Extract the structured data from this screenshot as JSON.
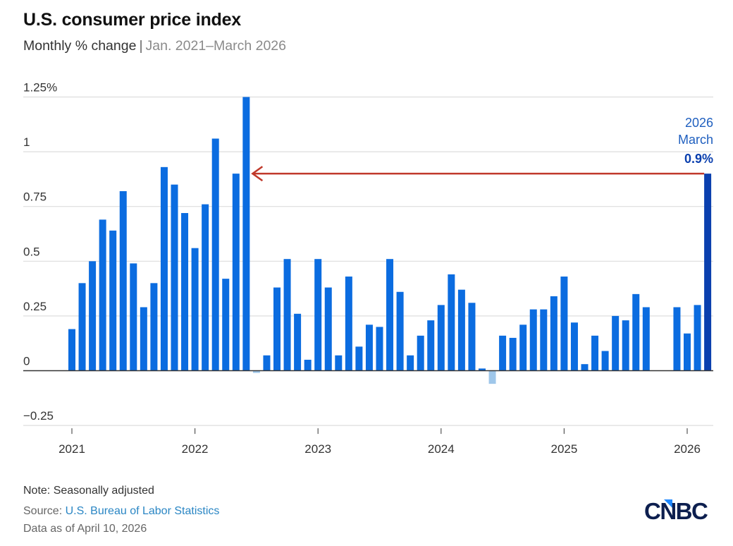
{
  "header": {
    "title": "U.S. consumer price index",
    "subtitle_main": "Monthly % change",
    "subtitle_sep": "|",
    "subtitle_range": "Jan. 2021–March 2026"
  },
  "footer": {
    "note": "Note: Seasonally adjusted",
    "source_label": "Source: ",
    "source_name": "U.S. Bureau of Labor Statistics",
    "data_as_of": "Data as of April 10, 2026",
    "logo_text": "CNBC"
  },
  "colors": {
    "bar": "#0b6ce0",
    "bar_highlight": "#0a3fae",
    "bar_negative": "#9fc7ea",
    "arrow": "#c0392b",
    "grid": "#dddddd",
    "callout": "#1f5fbf"
  },
  "chart_data": {
    "type": "bar",
    "title": "U.S. consumer price index",
    "subtitle": "Monthly % change | Jan. 2021–March 2026",
    "xlabel": "",
    "ylabel": "",
    "ylim": [
      -0.25,
      1.25
    ],
    "yticks": [
      -0.25,
      0,
      0.25,
      0.5,
      0.75,
      1,
      1.25
    ],
    "ytick_labels": [
      "−0.25",
      "0",
      "0.25",
      "0.5",
      "0.75",
      "1",
      "1.25%"
    ],
    "xtick_labels": [
      "2021",
      "2022",
      "2023",
      "2024",
      "2025",
      "2026"
    ],
    "grid": true,
    "categories": [
      "2021-01",
      "2021-02",
      "2021-03",
      "2021-04",
      "2021-05",
      "2021-06",
      "2021-07",
      "2021-08",
      "2021-09",
      "2021-10",
      "2021-11",
      "2021-12",
      "2022-01",
      "2022-02",
      "2022-03",
      "2022-04",
      "2022-05",
      "2022-06",
      "2022-07",
      "2022-08",
      "2022-09",
      "2022-10",
      "2022-11",
      "2022-12",
      "2023-01",
      "2023-02",
      "2023-03",
      "2023-04",
      "2023-05",
      "2023-06",
      "2023-07",
      "2023-08",
      "2023-09",
      "2023-10",
      "2023-11",
      "2023-12",
      "2024-01",
      "2024-02",
      "2024-03",
      "2024-04",
      "2024-05",
      "2024-06",
      "2024-07",
      "2024-08",
      "2024-09",
      "2024-10",
      "2024-11",
      "2024-12",
      "2025-01",
      "2025-02",
      "2025-03",
      "2025-04",
      "2025-05",
      "2025-06",
      "2025-07",
      "2025-08",
      "2025-09",
      "2025-10",
      "2025-11",
      "2025-12",
      "2026-01",
      "2026-02",
      "2026-03"
    ],
    "values": [
      0.19,
      0.4,
      0.5,
      0.69,
      0.64,
      0.82,
      0.49,
      0.29,
      0.4,
      0.93,
      0.85,
      0.72,
      0.56,
      0.76,
      1.06,
      0.42,
      0.9,
      1.25,
      -0.01,
      0.07,
      0.38,
      0.51,
      0.26,
      0.05,
      0.51,
      0.38,
      0.07,
      0.43,
      0.11,
      0.21,
      0.2,
      0.51,
      0.36,
      0.07,
      0.16,
      0.23,
      0.3,
      0.44,
      0.37,
      0.31,
      0.01,
      -0.06,
      0.16,
      0.15,
      0.21,
      0.28,
      0.28,
      0.34,
      0.43,
      0.22,
      0.03,
      0.16,
      0.09,
      0.25,
      0.23,
      0.35,
      0.29,
      null,
      null,
      0.29,
      0.17,
      0.3,
      0.9
    ],
    "highlight": {
      "category": "2026-03",
      "year_label": "2026",
      "month_label": "March",
      "value_label": "0.9%",
      "value": 0.9
    },
    "annotation": {
      "type": "arrow",
      "from": "2026-03",
      "to": "2022-06",
      "level": 0.9,
      "description": "Red arrow from March 2026 value back to the most recent comparable level (mid-2022)"
    },
    "missing_note": "No data for Oct. and Nov. 2025"
  }
}
